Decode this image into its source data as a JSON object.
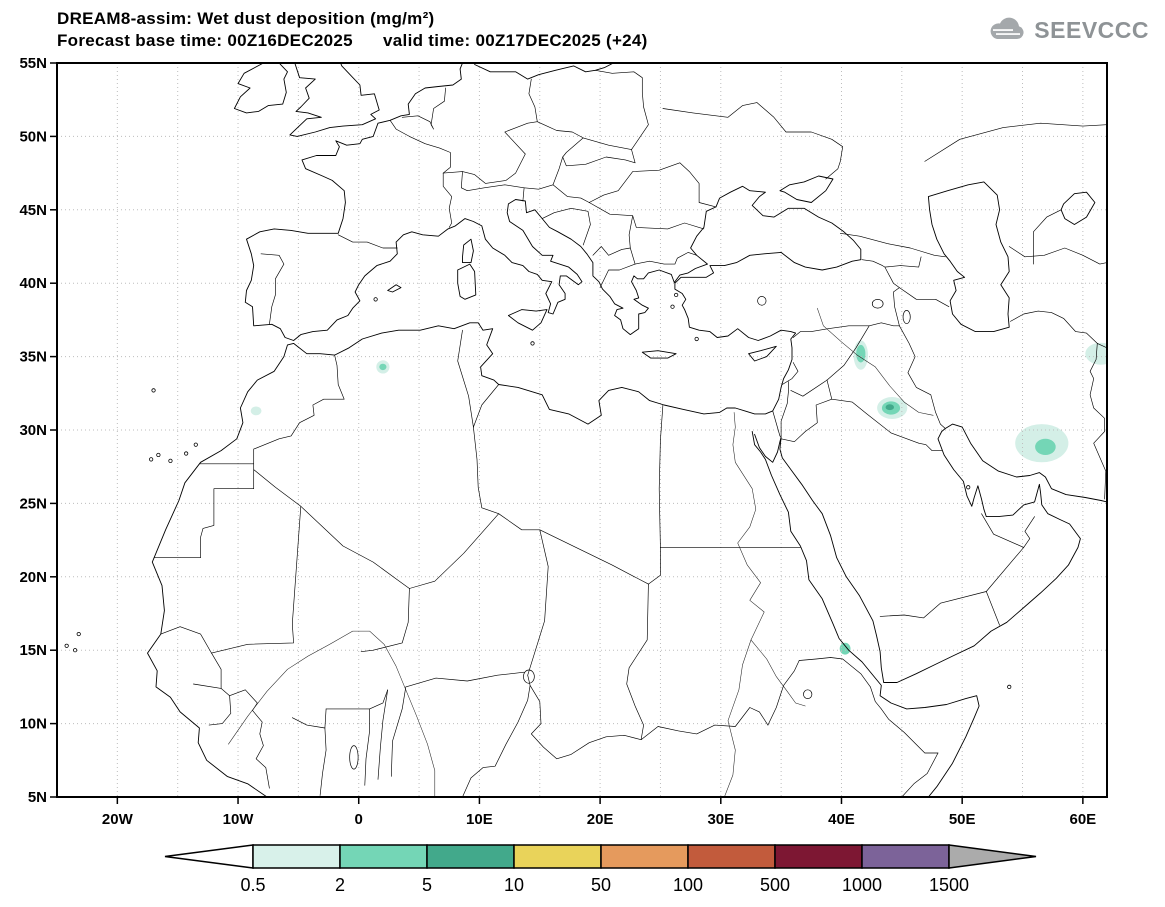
{
  "header": {
    "title_line1": "DREAM8-assim: Wet dust deposition (mg/m²)",
    "title_line2": "Forecast base time: 00Z16DEC2025      valid time: 00Z17DEC2025 (+24)",
    "logo_text": "SEEVCCC"
  },
  "chart_data": {
    "type": "map",
    "model": "DREAM8-assim",
    "variable": "Wet dust deposition",
    "units": "mg/m²",
    "forecast_base_time": "00Z16DEC2025",
    "valid_time": "00Z17DEC2025",
    "forecast_step": "+24",
    "lon_range": [
      -25,
      62
    ],
    "lat_range": [
      5,
      55
    ],
    "grid_step_deg": 5,
    "x_ticks": [
      {
        "label": "20W",
        "lon": -20
      },
      {
        "label": "10W",
        "lon": -10
      },
      {
        "label": "0",
        "lon": 0
      },
      {
        "label": "10E",
        "lon": 10
      },
      {
        "label": "20E",
        "lon": 20
      },
      {
        "label": "30E",
        "lon": 30
      },
      {
        "label": "40E",
        "lon": 40
      },
      {
        "label": "50E",
        "lon": 50
      },
      {
        "label": "60E",
        "lon": 60
      }
    ],
    "y_ticks": [
      {
        "label": "55N",
        "lat": 55
      },
      {
        "label": "50N",
        "lat": 50
      },
      {
        "label": "45N",
        "lat": 45
      },
      {
        "label": "40N",
        "lat": 40
      },
      {
        "label": "35N",
        "lat": 35
      },
      {
        "label": "30N",
        "lat": 30
      },
      {
        "label": "25N",
        "lat": 25
      },
      {
        "label": "20N",
        "lat": 20
      },
      {
        "label": "15N",
        "lat": 15
      },
      {
        "label": "10N",
        "lat": 10
      },
      {
        "label": "5N",
        "lat": 5
      }
    ],
    "colorbar": {
      "labels": [
        "0.5",
        "2",
        "5",
        "10",
        "50",
        "100",
        "500",
        "1000",
        "1500"
      ],
      "segment_colors": [
        "#d8f1ea",
        "#74d6b6",
        "#42a98b",
        "#e9d35a",
        "#e59a5d",
        "#c25b3c",
        "#7d1733",
        "#7c6399"
      ],
      "arrow_left_color": "#ffffff",
      "arrow_right_color": "#ababab",
      "level_colors": {
        "0.5-2": "#d4efe7",
        "2-5": "#74d6b6",
        "5-10": "#42a98b"
      }
    },
    "deposition_patches": [
      {
        "name": "north-iraq-syria",
        "layers": [
          {
            "lon": 41.6,
            "lat": 35.1,
            "rx": 0.6,
            "ry": 1.0,
            "level": "0.5-2"
          },
          {
            "lon": 41.6,
            "lat": 35.2,
            "rx": 0.38,
            "ry": 0.6,
            "level": "2-5"
          }
        ]
      },
      {
        "name": "south-iraq",
        "layers": [
          {
            "lon": 44.2,
            "lat": 31.5,
            "rx": 1.25,
            "ry": 0.75,
            "level": "0.5-2"
          },
          {
            "lon": 44.1,
            "lat": 31.5,
            "rx": 0.75,
            "ry": 0.45,
            "level": "2-5"
          },
          {
            "lon": 44.0,
            "lat": 31.55,
            "rx": 0.35,
            "ry": 0.2,
            "level": "5-10"
          }
        ]
      },
      {
        "name": "southeast-iran",
        "layers": [
          {
            "lon": 56.6,
            "lat": 29.1,
            "rx": 2.2,
            "ry": 1.3,
            "level": "0.5-2"
          },
          {
            "lon": 56.9,
            "lat": 28.85,
            "rx": 0.85,
            "ry": 0.55,
            "level": "2-5"
          }
        ]
      },
      {
        "name": "northeast-iran",
        "layers": [
          {
            "lon": 61.5,
            "lat": 35.2,
            "rx": 1.3,
            "ry": 0.75,
            "level": "0.5-2"
          }
        ]
      },
      {
        "name": "morocco",
        "layers": [
          {
            "lon": -8.5,
            "lat": 31.3,
            "rx": 0.45,
            "ry": 0.3,
            "level": "0.5-2"
          }
        ]
      },
      {
        "name": "algeria",
        "layers": [
          {
            "lon": 2.0,
            "lat": 34.3,
            "rx": 0.55,
            "ry": 0.45,
            "level": "0.5-2"
          },
          {
            "lon": 2.0,
            "lat": 34.3,
            "rx": 0.3,
            "ry": 0.22,
            "level": "2-5"
          }
        ]
      },
      {
        "name": "red-sea-coast",
        "layers": [
          {
            "lon": 40.3,
            "lat": 15.1,
            "rx": 0.45,
            "ry": 0.4,
            "level": "2-5"
          }
        ]
      }
    ]
  },
  "colors": {
    "frame": "#000000",
    "grid": "#bdbdbd",
    "coastline": "#000000",
    "logo_gray": "#a4a8ab"
  }
}
